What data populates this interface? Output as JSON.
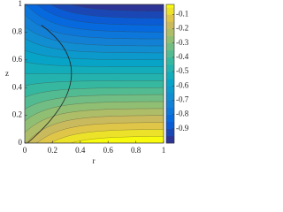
{
  "chart_data": {
    "type": "contour",
    "xlabel": "r",
    "ylabel": "z",
    "xlim": [
      0,
      1
    ],
    "ylim": [
      0,
      1
    ],
    "xticks": [
      0,
      0.2,
      0.4,
      0.6,
      0.8,
      1
    ],
    "yticks": [
      0,
      0.2,
      0.4,
      0.6,
      0.8,
      1
    ],
    "levels": [
      -1,
      -0.95,
      -0.9,
      -0.85,
      -0.8,
      -0.75,
      -0.7,
      -0.65,
      -0.6,
      -0.55,
      -0.5,
      -0.45,
      -0.4,
      -0.35,
      -0.3,
      -0.25,
      -0.2,
      -0.15,
      -0.1,
      -0.05,
      0
    ],
    "colormap": "parula",
    "clim": [
      -1,
      -0.03
    ],
    "colorbar_ticks": [
      -0.1,
      -0.2,
      -0.3,
      -0.4,
      -0.5,
      -0.6,
      -0.7,
      -0.8,
      -0.9
    ]
  }
}
